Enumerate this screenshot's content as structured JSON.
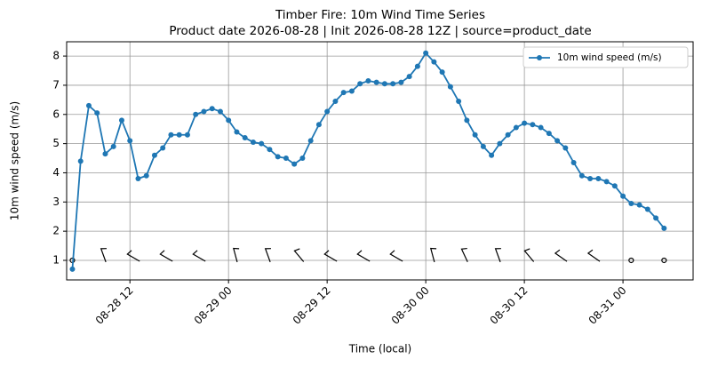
{
  "chart_data": {
    "type": "line",
    "title": "Timber Fire: 10m Wind Time Series",
    "subtitle": "Product date 2026-08-28 | Init 2026-08-28 12Z | source=product_date",
    "x_label": "Time (local)",
    "y_label": "10m wind speed (m/s)",
    "x": [
      "08-28 05",
      "08-28 06",
      "08-28 07",
      "08-28 08",
      "08-28 09",
      "08-28 10",
      "08-28 11",
      "08-28 12",
      "08-28 13",
      "08-28 14",
      "08-28 15",
      "08-28 16",
      "08-28 17",
      "08-28 18",
      "08-28 19",
      "08-28 20",
      "08-28 21",
      "08-28 22",
      "08-28 23",
      "08-29 00",
      "08-29 01",
      "08-29 02",
      "08-29 03",
      "08-29 04",
      "08-29 05",
      "08-29 06",
      "08-29 07",
      "08-29 08",
      "08-29 09",
      "08-29 10",
      "08-29 11",
      "08-29 12",
      "08-29 13",
      "08-29 14",
      "08-29 15",
      "08-29 16",
      "08-29 17",
      "08-29 18",
      "08-29 19",
      "08-29 20",
      "08-29 21",
      "08-29 22",
      "08-29 23",
      "08-30 00",
      "08-30 01",
      "08-30 02",
      "08-30 03",
      "08-30 04",
      "08-30 05",
      "08-30 06",
      "08-30 07",
      "08-30 08",
      "08-30 09",
      "08-30 10",
      "08-30 11",
      "08-30 12",
      "08-30 13",
      "08-30 14",
      "08-30 15",
      "08-30 16",
      "08-30 17",
      "08-30 18",
      "08-30 19",
      "08-30 20",
      "08-30 21",
      "08-30 22",
      "08-30 23",
      "08-31 00",
      "08-31 01",
      "08-31 02",
      "08-31 03",
      "08-31 04",
      "08-31 05"
    ],
    "series": [
      {
        "name": "10m wind speed (m/s)",
        "color": "#1f77b4",
        "values": [
          0.7,
          4.4,
          6.3,
          6.05,
          4.65,
          4.9,
          5.8,
          5.1,
          3.8,
          3.9,
          4.6,
          4.85,
          5.3,
          5.3,
          5.3,
          6.0,
          6.1,
          6.2,
          6.1,
          5.8,
          5.4,
          5.2,
          5.05,
          5.0,
          4.8,
          4.55,
          4.5,
          4.3,
          4.5,
          5.1,
          5.65,
          6.1,
          6.45,
          6.75,
          6.8,
          7.05,
          7.15,
          7.1,
          7.05,
          7.05,
          7.1,
          7.3,
          7.65,
          8.1,
          7.8,
          7.45,
          6.95,
          6.45,
          5.8,
          5.3,
          4.9,
          4.6,
          5.0,
          5.3,
          5.55,
          5.7,
          5.65,
          5.55,
          5.35,
          5.1,
          4.85,
          4.35,
          3.9,
          3.8,
          3.8,
          3.7,
          3.55,
          3.2,
          2.95,
          2.9,
          2.75,
          2.45,
          2.1
        ]
      }
    ],
    "wind_barbs": {
      "y": 1,
      "x": [
        "08-28 05",
        "08-28 09",
        "08-28 13",
        "08-28 17",
        "08-28 21",
        "08-29 01",
        "08-29 05",
        "08-29 09",
        "08-29 13",
        "08-29 17",
        "08-29 21",
        "08-30 01",
        "08-30 05",
        "08-30 09",
        "08-30 13",
        "08-30 17",
        "08-30 21",
        "08-31 01",
        "08-31 05"
      ],
      "direction": [
        null,
        340,
        300,
        300,
        300,
        345,
        340,
        320,
        300,
        300,
        300,
        345,
        335,
        340,
        320,
        305,
        305,
        null,
        null
      ]
    },
    "xlim": [
      "08-28 04:18",
      "08-31 08:32"
    ],
    "xticks": [
      "08-28 12",
      "08-29 00",
      "08-29 12",
      "08-30 00",
      "08-30 12",
      "08-31 00"
    ],
    "ylim": [
      0.33,
      8.49
    ],
    "yticks": [
      1,
      2,
      3,
      4,
      5,
      6,
      7,
      8
    ],
    "grid": true,
    "legend": "upper right"
  }
}
